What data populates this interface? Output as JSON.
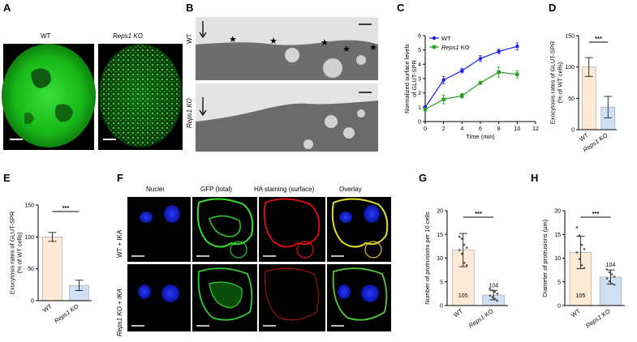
{
  "panels": {
    "A": {
      "letter": "A",
      "labels": [
        "WT",
        "Reps1 KO"
      ]
    },
    "B": {
      "letter": "B",
      "row_labels": [
        "WT",
        "Reps1 KO"
      ]
    },
    "C": {
      "letter": "C"
    },
    "D": {
      "letter": "D"
    },
    "E": {
      "letter": "E"
    },
    "F": {
      "letter": "F",
      "columns": [
        "Nuclei",
        "GFP (total)",
        "HA staining (surface)",
        "Overlay"
      ],
      "rows": [
        "WT + IKA",
        "Reps1 KO + IKA"
      ]
    },
    "G": {
      "letter": "G"
    },
    "H": {
      "letter": "H"
    }
  },
  "chart_data": [
    {
      "id": "C",
      "type": "line",
      "xlabel": "Time (min)",
      "ylabel": "Normalized surface levels of GLUT-SPR",
      "xlim": [
        0,
        12
      ],
      "ylim": [
        0,
        6
      ],
      "xticks": [
        0,
        2,
        4,
        6,
        8,
        10,
        12
      ],
      "yticks": [
        0,
        1,
        2,
        3,
        4,
        5,
        6
      ],
      "legend": "top-left",
      "series": [
        {
          "name": "WT",
          "color": "#1a1aff",
          "marker": "circle",
          "x": [
            0,
            2,
            4,
            6,
            8,
            10
          ],
          "y": [
            1.0,
            2.9,
            3.55,
            4.4,
            4.9,
            5.25
          ],
          "err": [
            0.1,
            0.25,
            0.15,
            0.2,
            0.15,
            0.25
          ]
        },
        {
          "name": "Reps1 KO",
          "color": "#22a022",
          "marker": "square",
          "x": [
            0,
            2,
            4,
            6,
            8,
            10
          ],
          "y": [
            0.85,
            1.55,
            1.8,
            2.7,
            3.45,
            3.3
          ],
          "err": [
            0.1,
            0.3,
            0.15,
            0.1,
            0.35,
            0.25
          ]
        }
      ]
    },
    {
      "id": "D",
      "type": "bar",
      "ylabel": "Exocytosis rates of GLUT-SPR (% of WT cells)",
      "categories": [
        "WT",
        "Reps1 KO"
      ],
      "values": [
        100,
        36
      ],
      "err": [
        15,
        17
      ],
      "colors": [
        "#fde9d4",
        "#cfe0f5"
      ],
      "ylim": [
        0,
        150
      ],
      "yticks": [
        0,
        50,
        100,
        150
      ],
      "significance": "***"
    },
    {
      "id": "E",
      "type": "bar",
      "ylabel": "Exocytosis rates of GLUT-SPR (% of WT cells)",
      "categories": [
        "WT",
        "Reps1 KO"
      ],
      "values": [
        100,
        24
      ],
      "err": [
        7,
        8
      ],
      "colors": [
        "#fde9d4",
        "#cfe0f5"
      ],
      "ylim": [
        0,
        150
      ],
      "yticks": [
        0,
        50,
        100,
        150
      ],
      "significance": "***"
    },
    {
      "id": "G",
      "type": "bar",
      "ylabel": "Number of protrusions per 10 cells",
      "categories": [
        "WT",
        "Reps1 KO"
      ],
      "values": [
        11.7,
        2.2
      ],
      "err": [
        3.5,
        1.0
      ],
      "n_labels": [
        "105",
        "104"
      ],
      "colors": [
        "#fde9d4",
        "#cfe0f5"
      ],
      "ylim": [
        0,
        20
      ],
      "yticks": [
        0,
        5,
        10,
        15,
        20
      ],
      "significance": "***",
      "points": [
        [
          14.5,
          14.1,
          12.8,
          12.2,
          11.7,
          10.9,
          9.0,
          8.5
        ],
        [
          3.5,
          3.2,
          2.9,
          2.5,
          2.1,
          1.8,
          1.4,
          1.0
        ]
      ]
    },
    {
      "id": "H",
      "type": "bar",
      "ylabel": "Diameter of protrusions (μm)",
      "categories": [
        "WT",
        "Reps1 KO"
      ],
      "values": [
        11.2,
        6.0
      ],
      "err": [
        3.4,
        1.5
      ],
      "n_labels": [
        "105",
        "104"
      ],
      "colors": [
        "#fde9d4",
        "#cfe0f5"
      ],
      "ylim": [
        0,
        20
      ],
      "yticks": [
        0,
        5,
        10,
        15,
        20
      ],
      "significance": "***",
      "points": [
        [
          16.5,
          14.8,
          12.8,
          11.9,
          11.2,
          9.8,
          8.5,
          7.9
        ],
        [
          7.6,
          7.0,
          6.6,
          6.1,
          5.7,
          5.1,
          4.6,
          4.4
        ]
      ]
    }
  ]
}
